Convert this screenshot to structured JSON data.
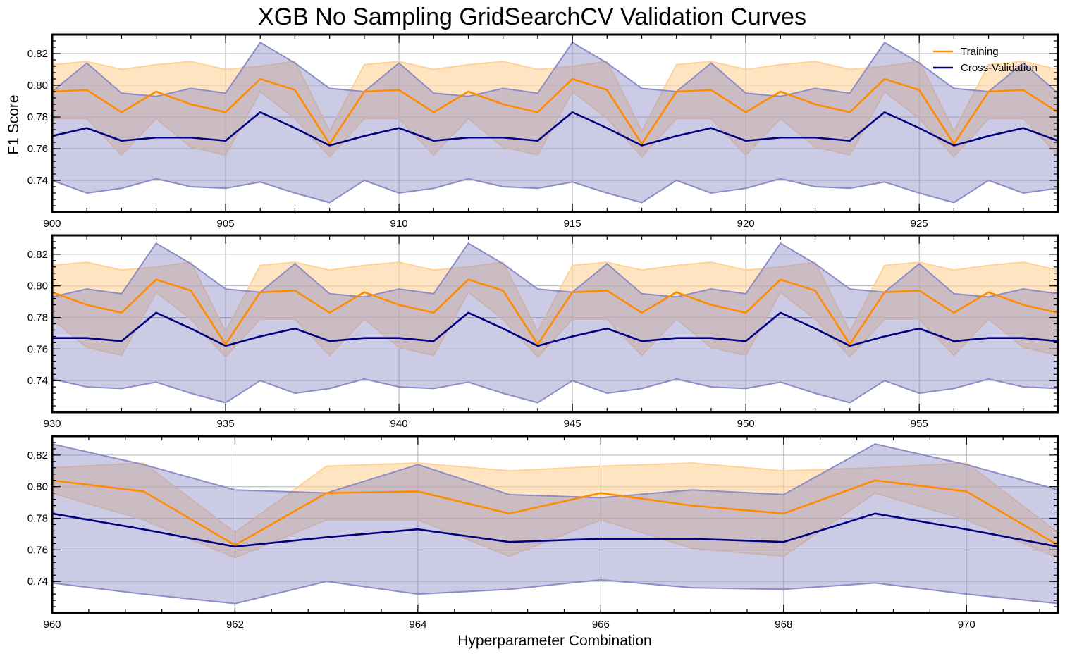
{
  "chart_data": {
    "type": "line",
    "title": "XGB No Sampling GridSearchCV Validation Curves",
    "ylabel": "F1 Score",
    "xlabel": "Hyperparameter Combination",
    "legend": {
      "placement": "top-right",
      "entries": [
        "Training",
        "Cross-Validation"
      ]
    },
    "grid": true,
    "colors": {
      "train": "#ff8c00",
      "train_band": "#ffd29a",
      "cv": "#000080",
      "cv_band": "#8c8cc8"
    },
    "patterns": {
      "train_mean": [
        0.796,
        0.797,
        0.783,
        0.796,
        0.788,
        0.783,
        0.804,
        0.797,
        0.763,
        0.796,
        0.797,
        0.783,
        0.796,
        0.788,
        0.783,
        0.804,
        0.797,
        0.763
      ],
      "train_std": [
        0.017,
        0.018,
        0.027,
        0.017,
        0.027,
        0.027,
        0.008,
        0.018,
        0.008,
        0.017,
        0.018,
        0.027,
        0.017,
        0.027,
        0.027,
        0.008,
        0.018,
        0.008
      ],
      "cv_mean": [
        0.768,
        0.773,
        0.765,
        0.767,
        0.767,
        0.765,
        0.783,
        0.773,
        0.762,
        0.768,
        0.773,
        0.765,
        0.767,
        0.767,
        0.765,
        0.783,
        0.773,
        0.762
      ],
      "cv_std": [
        0.028,
        0.041,
        0.03,
        0.026,
        0.031,
        0.03,
        0.044,
        0.041,
        0.036,
        0.028,
        0.041,
        0.03,
        0.026,
        0.031,
        0.03,
        0.044,
        0.041,
        0.036
      ]
    },
    "panels": [
      {
        "xlim": [
          900,
          929
        ],
        "ylim": [
          0.72,
          0.832
        ],
        "xticks": [
          900,
          905,
          910,
          915,
          920,
          925
        ],
        "ytick_labels": [
          "0.74",
          "0.76",
          "0.78",
          "0.80",
          "0.82"
        ],
        "yticks": [
          0.74,
          0.76,
          0.78,
          0.8,
          0.82
        ],
        "start": 900,
        "end": 929,
        "offset": 0,
        "show_ylabel": true,
        "show_xlabel": false,
        "show_legend": true
      },
      {
        "xlim": [
          930,
          959
        ],
        "ylim": [
          0.72,
          0.832
        ],
        "xticks": [
          930,
          935,
          940,
          945,
          950,
          955
        ],
        "ytick_labels": [
          "0.74",
          "0.76",
          "0.78",
          "0.80",
          "0.82"
        ],
        "yticks": [
          0.74,
          0.76,
          0.78,
          0.8,
          0.82
        ],
        "start": 930,
        "end": 959,
        "offset": 12,
        "show_ylabel": false,
        "show_xlabel": false,
        "show_legend": false
      },
      {
        "xlim": [
          960,
          971
        ],
        "ylim": [
          0.72,
          0.832
        ],
        "xticks": [
          960,
          962,
          964,
          966,
          968,
          970
        ],
        "ytick_labels": [
          "0.74",
          "0.76",
          "0.78",
          "0.80",
          "0.82"
        ],
        "yticks": [
          0.74,
          0.76,
          0.78,
          0.8,
          0.82
        ],
        "start": 960,
        "end": 971,
        "offset": 6,
        "show_ylabel": false,
        "show_xlabel": true,
        "show_legend": false
      }
    ]
  }
}
